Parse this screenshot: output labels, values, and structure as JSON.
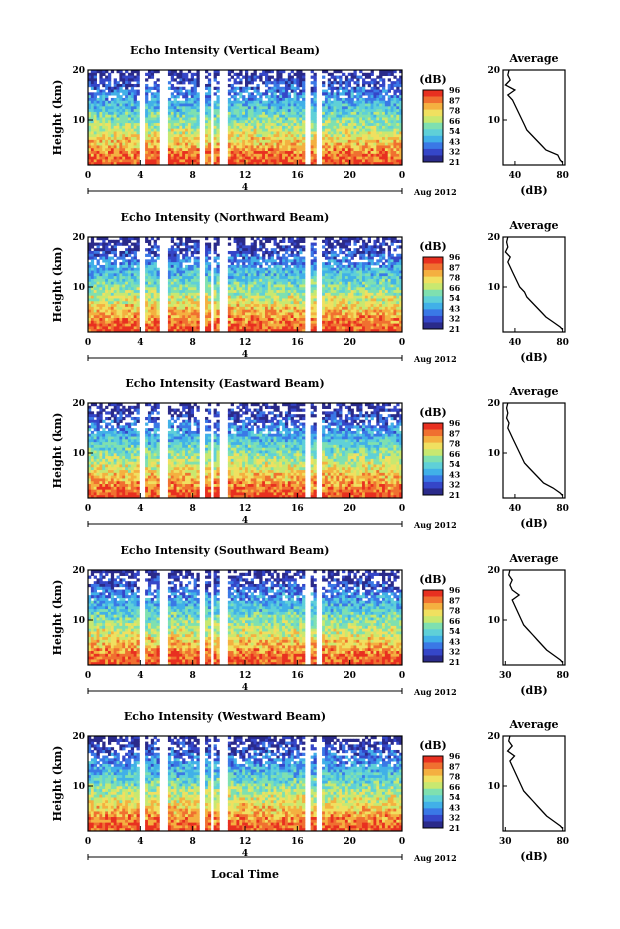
{
  "xlabel": "Local Time",
  "date_label": "Aug 2012",
  "date_marker": "4",
  "ylabel": "Height (km)",
  "avg_title": "Average",
  "avg_xlabel": "(dB)",
  "cb_unit": "(dB)",
  "colors": {
    "scale": [
      "#2a2a8a",
      "#3546c8",
      "#3a78e6",
      "#41b0e8",
      "#5fd0d8",
      "#7fe0b0",
      "#c8e870",
      "#f0e060",
      "#f4b040",
      "#f07030",
      "#e83020"
    ]
  },
  "chart_data": [
    {
      "type": "heatmap",
      "title": "Echo Intensity (Vertical Beam)",
      "xlabel": "Local Time",
      "ylabel": "Height (km)",
      "x_ticks": [
        "0",
        "4",
        "8",
        "12",
        "16",
        "20",
        "0"
      ],
      "y_ticks": [
        "10",
        "20"
      ],
      "xlim": [
        0,
        24
      ],
      "ylim": [
        1,
        20
      ],
      "colorbar_ticks": [
        "96",
        "87",
        "78",
        "66",
        "54",
        "43",
        "32",
        "21"
      ],
      "gaps_hours": [
        [
          4.0,
          4.4
        ],
        [
          5.4,
          6.0
        ],
        [
          8.6,
          9.0
        ],
        [
          9.4,
          9.6
        ],
        [
          10.1,
          10.7
        ],
        [
          16.6,
          17.0
        ],
        [
          17.5,
          17.8
        ]
      ],
      "average_profile": {
        "xlabel": "(dB)",
        "x_ticks": [
          "40",
          "80"
        ],
        "xlim": [
          30,
          82
        ],
        "y_ticks": [
          "10",
          "20"
        ],
        "height_km": [
          1.5,
          2,
          3,
          4,
          5,
          6,
          7,
          8,
          9,
          10,
          11,
          12,
          13,
          14,
          15,
          16,
          17,
          18,
          19,
          20
        ],
        "db": [
          80,
          78,
          76,
          66,
          62,
          58,
          54,
          50,
          48,
          46,
          44,
          42,
          40,
          38,
          34,
          40,
          32,
          36,
          34,
          35
        ]
      }
    },
    {
      "type": "heatmap",
      "title": "Echo Intensity (Northward Beam)",
      "xlabel": "Local Time",
      "ylabel": "Height (km)",
      "x_ticks": [
        "0",
        "4",
        "8",
        "12",
        "16",
        "20",
        "0"
      ],
      "y_ticks": [
        "10",
        "20"
      ],
      "xlim": [
        0,
        24
      ],
      "ylim": [
        1,
        20
      ],
      "colorbar_ticks": [
        "96",
        "87",
        "78",
        "66",
        "54",
        "43",
        "32",
        "21"
      ],
      "gaps_hours": [
        [
          4.0,
          4.4
        ],
        [
          5.4,
          6.0
        ],
        [
          8.6,
          9.0
        ],
        [
          9.4,
          9.6
        ],
        [
          10.1,
          10.7
        ],
        [
          16.6,
          17.0
        ],
        [
          17.5,
          17.8
        ]
      ],
      "average_profile": {
        "xlabel": "(dB)",
        "x_ticks": [
          "40",
          "80"
        ],
        "xlim": [
          30,
          82
        ],
        "y_ticks": [
          "10",
          "20"
        ],
        "height_km": [
          1.5,
          2,
          3,
          4,
          5,
          6,
          7,
          8,
          9,
          10,
          11,
          12,
          13,
          14,
          15,
          16,
          17,
          18,
          19,
          20
        ],
        "db": [
          80,
          78,
          72,
          66,
          62,
          58,
          54,
          50,
          48,
          44,
          42,
          40,
          38,
          36,
          34,
          36,
          32,
          34,
          33,
          34
        ]
      }
    },
    {
      "type": "heatmap",
      "title": "Echo Intensity (Eastward Beam)",
      "xlabel": "Local Time",
      "ylabel": "Height (km)",
      "x_ticks": [
        "0",
        "4",
        "8",
        "12",
        "16",
        "20",
        "0"
      ],
      "y_ticks": [
        "10",
        "20"
      ],
      "xlim": [
        0,
        24
      ],
      "ylim": [
        1,
        20
      ],
      "colorbar_ticks": [
        "96",
        "87",
        "78",
        "66",
        "54",
        "43",
        "32",
        "21"
      ],
      "gaps_hours": [
        [
          4.0,
          4.4
        ],
        [
          5.4,
          6.0
        ],
        [
          8.6,
          9.0
        ],
        [
          9.4,
          9.6
        ],
        [
          10.1,
          10.7
        ],
        [
          16.6,
          17.0
        ],
        [
          17.5,
          17.8
        ]
      ],
      "average_profile": {
        "xlabel": "(dB)",
        "x_ticks": [
          "40",
          "80"
        ],
        "xlim": [
          30,
          82
        ],
        "y_ticks": [
          "10",
          "20"
        ],
        "height_km": [
          1.5,
          2,
          3,
          4,
          5,
          6,
          7,
          8,
          9,
          10,
          11,
          12,
          13,
          14,
          15,
          16,
          17,
          18,
          19,
          20
        ],
        "db": [
          80,
          78,
          72,
          64,
          60,
          56,
          52,
          48,
          46,
          44,
          42,
          40,
          38,
          36,
          34,
          35,
          33,
          34,
          33,
          34
        ]
      }
    },
    {
      "type": "heatmap",
      "title": "Echo Intensity (Southward Beam)",
      "xlabel": "Local Time",
      "ylabel": "Height (km)",
      "x_ticks": [
        "0",
        "4",
        "8",
        "12",
        "16",
        "20",
        "0"
      ],
      "y_ticks": [
        "10",
        "20"
      ],
      "xlim": [
        0,
        24
      ],
      "ylim": [
        1,
        20
      ],
      "colorbar_ticks": [
        "96",
        "87",
        "78",
        "66",
        "54",
        "43",
        "32",
        "21"
      ],
      "gaps_hours": [
        [
          4.0,
          4.4
        ],
        [
          5.4,
          6.0
        ],
        [
          8.6,
          9.0
        ],
        [
          9.4,
          9.6
        ],
        [
          10.1,
          10.7
        ],
        [
          16.6,
          17.0
        ],
        [
          17.5,
          17.8
        ]
      ],
      "average_profile": {
        "xlabel": "(dB)",
        "x_ticks": [
          "30",
          "80"
        ],
        "xlim": [
          28,
          82
        ],
        "y_ticks": [
          "10",
          "20"
        ],
        "height_km": [
          1.5,
          2,
          3,
          4,
          5,
          6,
          7,
          8,
          9,
          10,
          11,
          12,
          13,
          14,
          15,
          16,
          17,
          18,
          19,
          20
        ],
        "db": [
          80,
          78,
          72,
          66,
          62,
          58,
          54,
          50,
          46,
          44,
          42,
          40,
          38,
          36,
          42,
          36,
          34,
          36,
          33,
          34
        ]
      }
    },
    {
      "type": "heatmap",
      "title": "Echo Intensity (Westward Beam)",
      "xlabel": "Local Time",
      "ylabel": "Height (km)",
      "x_ticks": [
        "0",
        "4",
        "8",
        "12",
        "16",
        "20",
        "0"
      ],
      "y_ticks": [
        "10",
        "20"
      ],
      "xlim": [
        0,
        24
      ],
      "ylim": [
        1,
        20
      ],
      "colorbar_ticks": [
        "96",
        "87",
        "78",
        "66",
        "54",
        "43",
        "32",
        "21"
      ],
      "gaps_hours": [
        [
          4.0,
          4.4
        ],
        [
          5.4,
          6.0
        ],
        [
          8.6,
          9.0
        ],
        [
          9.4,
          9.6
        ],
        [
          10.1,
          10.7
        ],
        [
          16.6,
          17.0
        ],
        [
          17.5,
          17.8
        ]
      ],
      "average_profile": {
        "xlabel": "(dB)",
        "x_ticks": [
          "30",
          "80"
        ],
        "xlim": [
          28,
          82
        ],
        "y_ticks": [
          "10",
          "20"
        ],
        "height_km": [
          1.5,
          2,
          3,
          4,
          5,
          6,
          7,
          8,
          9,
          10,
          11,
          12,
          13,
          14,
          15,
          16,
          17,
          18,
          19,
          20
        ],
        "db": [
          80,
          78,
          72,
          66,
          62,
          58,
          54,
          50,
          46,
          44,
          42,
          40,
          38,
          36,
          34,
          38,
          32,
          36,
          33,
          34
        ]
      }
    }
  ]
}
